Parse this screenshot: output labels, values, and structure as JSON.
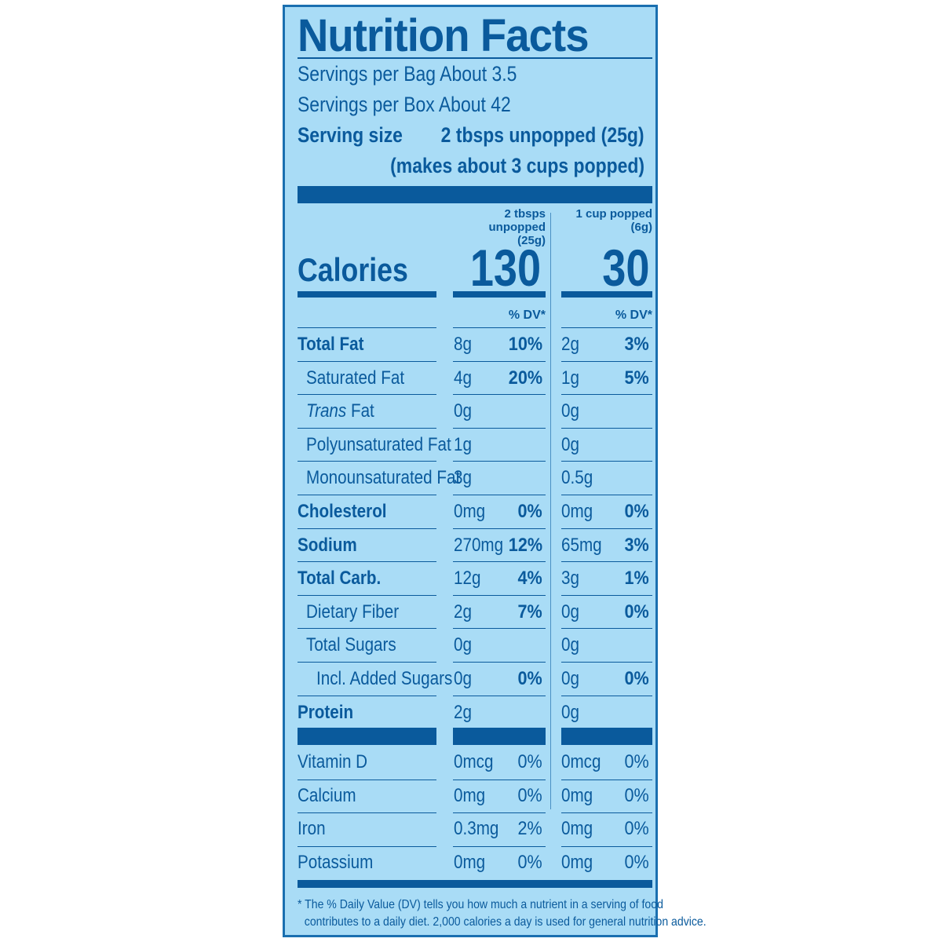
{
  "title": "Nutrition Facts",
  "servings": [
    "Servings per Bag About 3.5",
    "Servings per Box About 42"
  ],
  "serving_size_label": "Serving size",
  "serving_size_value": "2 tbsps unpopped (25g)",
  "serving_size_note": "(makes about 3 cups popped)",
  "columns": {
    "a_header_line1": "2 tbsps unpopped",
    "a_header_line2": "(25g)",
    "b_header": "1 cup popped (6g)",
    "dv_header": "% DV*"
  },
  "calories": {
    "label": "Calories",
    "a": "130",
    "b": "30"
  },
  "nutrients": [
    {
      "name": "Total Fat",
      "bold": true,
      "indent": 0,
      "a": "8g",
      "a_dv": "10%",
      "b": "2g",
      "b_dv": "3%"
    },
    {
      "name": "Saturated Fat",
      "bold": false,
      "indent": 1,
      "a": "4g",
      "a_dv": "20%",
      "b": "1g",
      "b_dv": "5%"
    },
    {
      "name_italic": "Trans",
      "name": " Fat",
      "bold": false,
      "indent": 1,
      "a": "0g",
      "a_dv": "",
      "b": "0g",
      "b_dv": ""
    },
    {
      "name": "Polyunsaturated Fat",
      "bold": false,
      "indent": 1,
      "a": "1g",
      "a_dv": "",
      "b": "0g",
      "b_dv": ""
    },
    {
      "name": "Monounsaturated Fat",
      "bold": false,
      "indent": 1,
      "a": "3g",
      "a_dv": "",
      "b": "0.5g",
      "b_dv": ""
    },
    {
      "name": "Cholesterol",
      "bold": true,
      "indent": 0,
      "a": "0mg",
      "a_dv": "0%",
      "b": "0mg",
      "b_dv": "0%"
    },
    {
      "name": "Sodium",
      "bold": true,
      "indent": 0,
      "a": "270mg",
      "a_dv": "12%",
      "b": "65mg",
      "b_dv": "3%"
    },
    {
      "name": "Total Carb.",
      "bold": true,
      "indent": 0,
      "a": "12g",
      "a_dv": "4%",
      "b": "3g",
      "b_dv": "1%"
    },
    {
      "name": "Dietary Fiber",
      "bold": false,
      "indent": 1,
      "a": "2g",
      "a_dv": "7%",
      "b": "0g",
      "b_dv": "0%"
    },
    {
      "name": "Total Sugars",
      "bold": false,
      "indent": 1,
      "a": "0g",
      "a_dv": "",
      "b": "0g",
      "b_dv": ""
    },
    {
      "name": "Incl. Added Sugars",
      "bold": false,
      "indent": 2,
      "a": "0g",
      "a_dv": "0%",
      "b": "0g",
      "b_dv": "0%"
    },
    {
      "name": "Protein",
      "bold": true,
      "indent": 0,
      "a": "2g",
      "a_dv": "",
      "b": "0g",
      "b_dv": ""
    }
  ],
  "vitamins": [
    {
      "name": "Vitamin D",
      "a": "0mcg",
      "a_dv": "0%",
      "b": "0mcg",
      "b_dv": "0%"
    },
    {
      "name": "Calcium",
      "a": "0mg",
      "a_dv": "0%",
      "b": "0mg",
      "b_dv": "0%"
    },
    {
      "name": "Iron",
      "a": "0.3mg",
      "a_dv": "2%",
      "b": "0mg",
      "b_dv": "0%"
    },
    {
      "name": "Potassium",
      "a": "0mg",
      "a_dv": "0%",
      "b": "0mg",
      "b_dv": "0%"
    }
  ],
  "footnote_line1": "* The % Daily Value (DV) tells you how much a nutrient in a serving of food",
  "footnote_line2": "contributes to a daily diet. 2,000 calories a day is used for general nutrition advice.",
  "colors": {
    "background": "#a9dcf6",
    "ink": "#0a5a9c",
    "border": "#1a6fb0"
  }
}
